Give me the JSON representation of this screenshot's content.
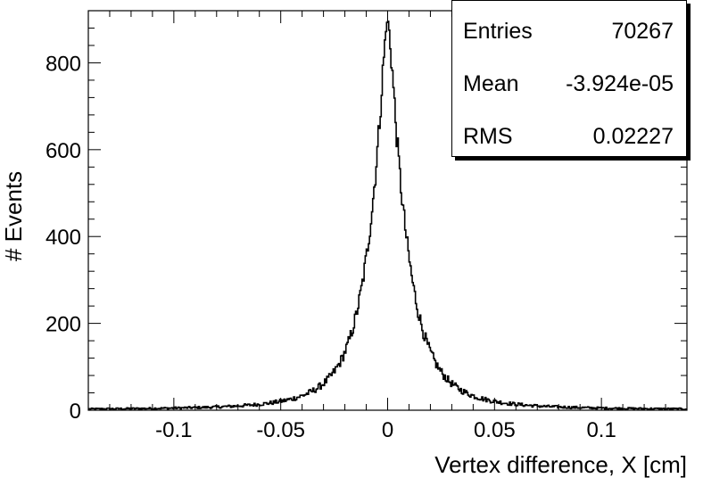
{
  "chart_data": {
    "type": "histogram",
    "title": "",
    "xlabel": "Vertex difference, X [cm]",
    "ylabel": "# Events",
    "xlim": [
      -0.14,
      0.14
    ],
    "ylim": [
      0,
      920
    ],
    "x_ticks": [
      -0.1,
      -0.05,
      0,
      0.05,
      0.1
    ],
    "x_tick_labels": [
      "-0.1",
      "-0.05",
      "0",
      "0.05",
      "0.1"
    ],
    "y_ticks": [
      0,
      200,
      400,
      600,
      800
    ],
    "y_tick_labels": [
      "0",
      "200",
      "400",
      "600",
      "800"
    ],
    "shape": {
      "peak_x": 0.0,
      "peak_y": 880,
      "max_y": 905,
      "core_width": 0.004,
      "tail_width": 0.013,
      "core_fraction": 0.42
    },
    "stats": {
      "entries_label": "Entries",
      "entries": "70267",
      "mean_label": "Mean",
      "mean": "-3.924e-05",
      "rms_label": "RMS",
      "rms": "0.02227"
    }
  }
}
